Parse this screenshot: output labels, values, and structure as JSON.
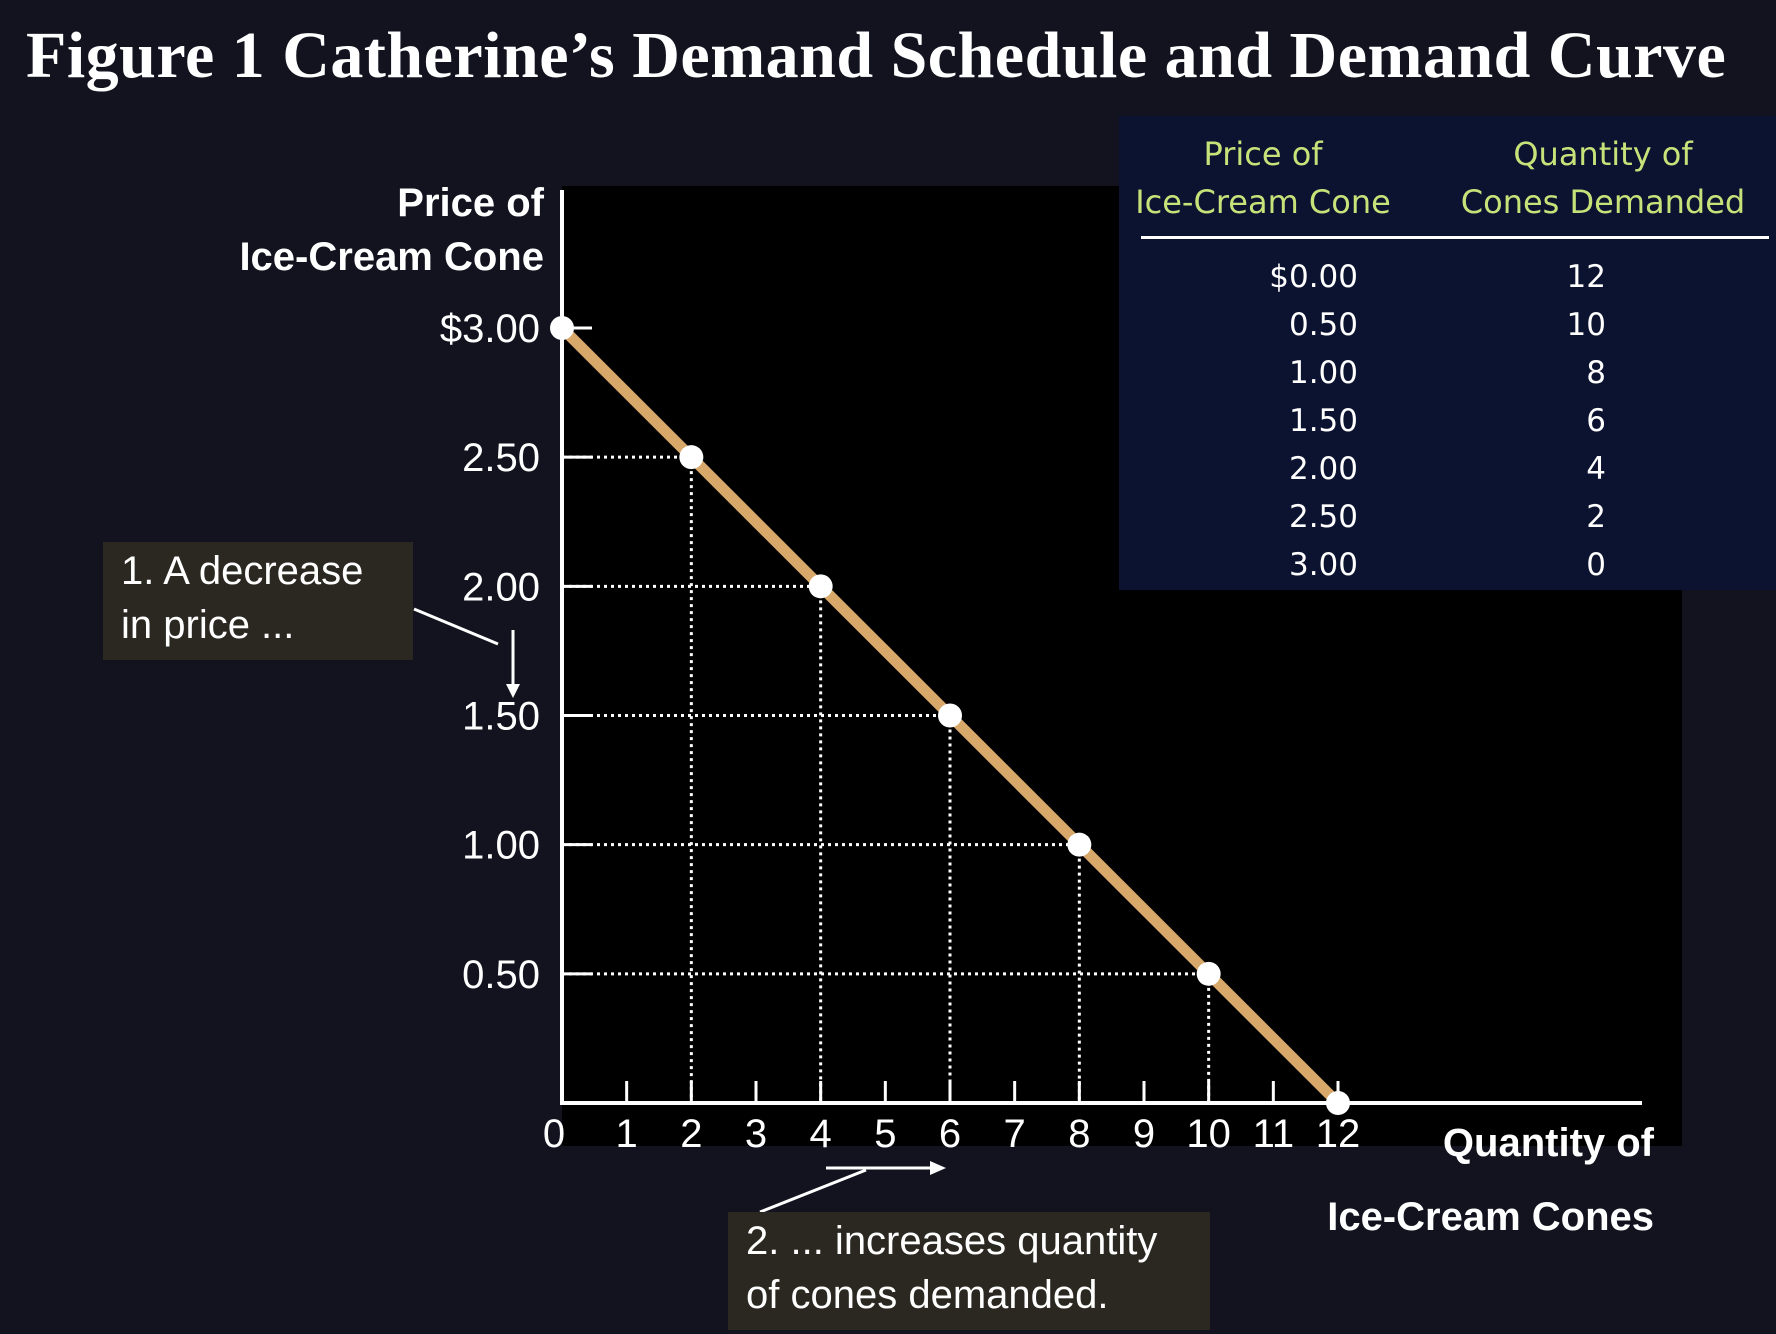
{
  "title": "Figure 1 Catherine’s Demand Schedule and Demand Curve",
  "schedule": {
    "header_price": [
      "Price of",
      "Ice-Cream Cone"
    ],
    "header_quantity": [
      "Quantity of",
      "Cones Demanded"
    ],
    "rows": [
      {
        "price": "$0.00",
        "quantity": "12"
      },
      {
        "price": "0.50",
        "quantity": "10"
      },
      {
        "price": "1.00",
        "quantity": "8"
      },
      {
        "price": "1.50",
        "quantity": "6"
      },
      {
        "price": "2.00",
        "quantity": "4"
      },
      {
        "price": "2.50",
        "quantity": "2"
      },
      {
        "price": "3.00",
        "quantity": "0"
      }
    ]
  },
  "annotations": {
    "note1": [
      "1. A decrease",
      "in price ..."
    ],
    "note2": [
      "2. ...  increases quantity",
      "of cones demanded."
    ]
  },
  "colors": {
    "background": "#12131f",
    "plot_area": "#000000",
    "curve": "#d7a86a",
    "table_background": "#0c1330",
    "table_header": "#c8e27a",
    "note_background": "#2a2820"
  },
  "chart_data": {
    "type": "line",
    "title": "Figure 1 Catherine’s Demand Schedule and Demand Curve",
    "xlabel": [
      "Quantity of",
      "Ice-Cream Cones"
    ],
    "ylabel": [
      "Price of",
      "Ice-Cream Cone"
    ],
    "x_ticks": [
      "0",
      "1",
      "2",
      "3",
      "4",
      "5",
      "6",
      "7",
      "8",
      "9",
      "10",
      "11",
      "12"
    ],
    "y_ticks": [
      {
        "value": 3.0,
        "label": "$3.00"
      },
      {
        "value": 2.5,
        "label": "2.50"
      },
      {
        "value": 2.0,
        "label": "2.00"
      },
      {
        "value": 1.5,
        "label": "1.50"
      },
      {
        "value": 1.0,
        "label": "1.00"
      },
      {
        "value": 0.5,
        "label": "0.50"
      }
    ],
    "xlim": [
      0,
      12
    ],
    "ylim": [
      0,
      3
    ],
    "series": [
      {
        "x": [
          0,
          2,
          4,
          6,
          8,
          10,
          12
        ],
        "y": [
          3.0,
          2.5,
          2.0,
          1.5,
          1.0,
          0.5,
          0.0
        ]
      }
    ],
    "guides": "dotted lines from each point to both axes",
    "grid": false,
    "legend": "none"
  }
}
